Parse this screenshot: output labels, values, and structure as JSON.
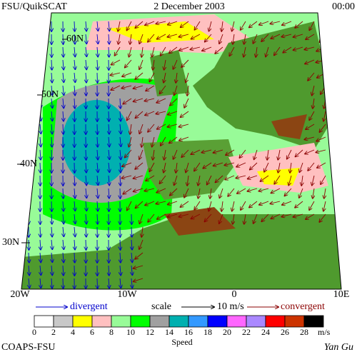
{
  "header": {
    "left": "FSU/QuikSCAT",
    "center": "2 December 2003",
    "right": "00:00"
  },
  "map": {
    "lat_labels": [
      "60N",
      "50N",
      "40N",
      "30N"
    ],
    "lon_labels": [
      "20W",
      "10W",
      "0",
      "10E"
    ]
  },
  "legend": {
    "divergent": "divergent",
    "scale": "scale",
    "scale_value": "10 m/s",
    "convergent": "convergent"
  },
  "colorbar": {
    "ticks": [
      "0",
      "2",
      "4",
      "6",
      "8",
      "10",
      "12",
      "14",
      "16",
      "18",
      "20",
      "22",
      "24",
      "26",
      "28"
    ],
    "colors": [
      "#ffffff",
      "#c8c8c8",
      "#ffff00",
      "#ffc0c0",
      "#98fb98",
      "#00ff00",
      "#a0a0a0",
      "#00b0b0",
      "#3399ff",
      "#0000ff",
      "#ff66ff",
      "#aa88ff",
      "#ff0000",
      "#cc3300",
      "#000000"
    ],
    "unit": "m/s",
    "label": "Speed"
  },
  "footer": {
    "left": "COAPS-FSU",
    "right": "Yan Gu"
  }
}
